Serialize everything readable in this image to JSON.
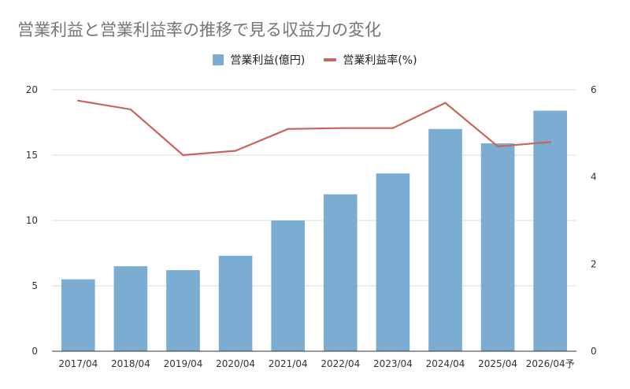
{
  "chart_data": {
    "type": "bar",
    "title": "営業利益と営業利益率の推移で見る収益力の変化",
    "categories": [
      "2017/04",
      "2018/04",
      "2019/04",
      "2020/04",
      "2021/04",
      "2022/04",
      "2023/04",
      "2024/04",
      "2025/04",
      "2026/04予"
    ],
    "series": [
      {
        "name": "営業利益(億円)",
        "type": "bar",
        "axis": "left",
        "color": "#7bacd2",
        "values": [
          5.5,
          6.5,
          6.2,
          7.3,
          10.0,
          12.0,
          13.6,
          17.0,
          15.9,
          18.4
        ]
      },
      {
        "name": "営業利益率(%)",
        "type": "line",
        "axis": "right",
        "color": "#c8645a",
        "values": [
          5.75,
          5.55,
          4.5,
          4.6,
          5.1,
          5.12,
          5.12,
          5.7,
          4.7,
          4.8
        ]
      }
    ],
    "y_left": {
      "ylim": [
        0,
        20
      ],
      "ticks": [
        0,
        5,
        10,
        15,
        20
      ]
    },
    "y_right": {
      "ylim": [
        0,
        6
      ],
      "ticks": [
        0,
        2,
        4,
        6
      ]
    },
    "grid": true,
    "legend_position": "top-center"
  }
}
